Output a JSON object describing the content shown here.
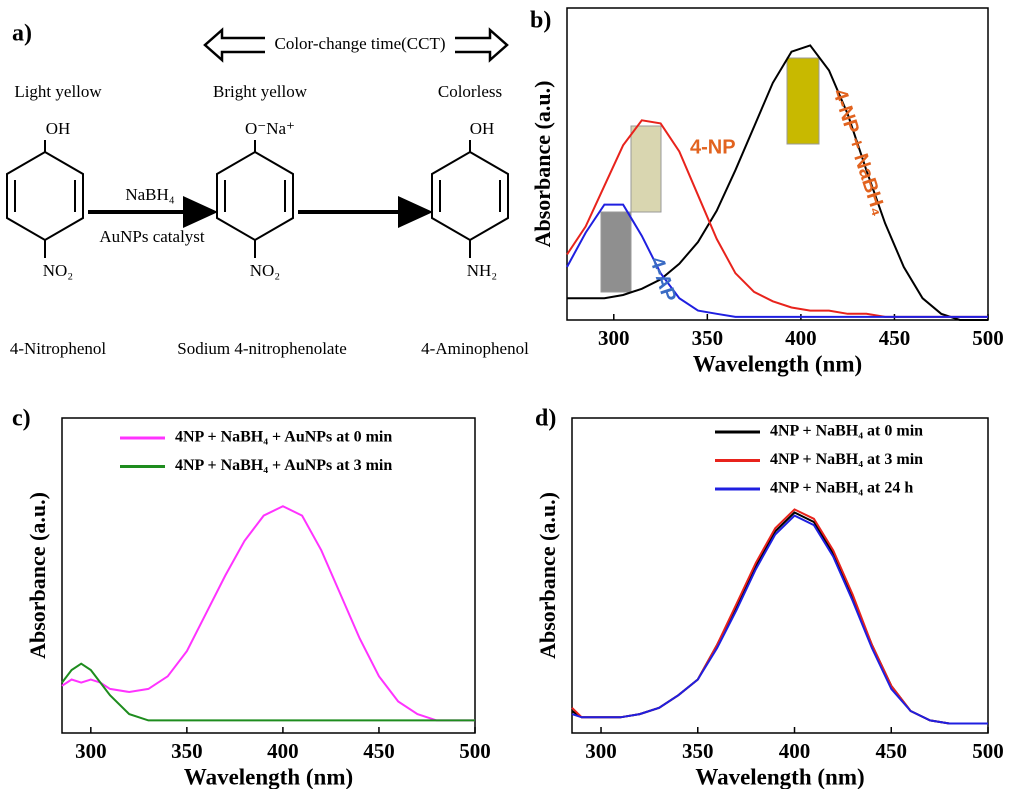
{
  "scheme": {
    "label": "a)",
    "cct": "Color-change time(CCT)",
    "colors": [
      "Light yellow",
      "Bright yellow",
      "Colorless"
    ],
    "top_groups": [
      "OH",
      "O⁻Na⁺",
      "OH"
    ],
    "bottom_groups": [
      "NO₂",
      "NO₂",
      "NH₂"
    ],
    "reagent": "NaBH₄",
    "catalyst": "AuNPs catalyst",
    "names": [
      "4-Nitrophenol",
      "Sodium 4-nitrophenolate",
      "4-Aminophenol"
    ]
  },
  "chart_data": [
    {
      "type": "line",
      "label": "b)",
      "xlabel": "Wavelength (nm)",
      "ylabel": "Absorbance (a.u.)",
      "x": [
        275,
        285,
        295,
        305,
        315,
        325,
        335,
        345,
        355,
        365,
        375,
        385,
        395,
        405,
        415,
        425,
        435,
        445,
        455,
        465,
        475,
        485,
        500
      ],
      "xlim": [
        275,
        500
      ],
      "xticks": [
        300,
        350,
        400,
        450,
        500
      ],
      "ylim": [
        0,
        1
      ],
      "series": [
        {
          "name": "4-NP + NaBH₄",
          "color": "#000000",
          "label_color": "#e2631f",
          "values": [
            0.07,
            0.07,
            0.07,
            0.08,
            0.1,
            0.13,
            0.18,
            0.25,
            0.35,
            0.48,
            0.62,
            0.76,
            0.86,
            0.88,
            0.8,
            0.66,
            0.48,
            0.31,
            0.17,
            0.07,
            0.02,
            0,
            0
          ]
        },
        {
          "name": "4-NP",
          "color": "#e8231c",
          "label_color": "#e2631f",
          "values": [
            0.21,
            0.3,
            0.43,
            0.56,
            0.64,
            0.63,
            0.54,
            0.4,
            0.26,
            0.15,
            0.09,
            0.06,
            0.04,
            0.03,
            0.03,
            0.02,
            0.02,
            0.01,
            0.01,
            0.01,
            0.01,
            0.01,
            0.01
          ]
        },
        {
          "name": "4-AP",
          "color": "#1f1fe0",
          "label_color": "#3a6bc4",
          "values": [
            0.17,
            0.28,
            0.37,
            0.37,
            0.27,
            0.15,
            0.07,
            0.03,
            0.02,
            0.01,
            0.01,
            0.01,
            0.01,
            0.01,
            0.01,
            0.01,
            0.01,
            0.01,
            0.01,
            0.01,
            0.01,
            0.01,
            0.01
          ]
        }
      ]
    },
    {
      "type": "line",
      "label": "c)",
      "xlabel": "Wavelength (nm)",
      "ylabel": "Absorbance (a.u.)",
      "x": [
        285,
        290,
        295,
        300,
        305,
        310,
        320,
        330,
        340,
        350,
        360,
        370,
        380,
        390,
        400,
        410,
        420,
        430,
        440,
        450,
        460,
        470,
        480,
        490,
        500
      ],
      "xlim": [
        285,
        500
      ],
      "xticks": [
        300,
        350,
        400,
        450,
        500
      ],
      "ylim": [
        0,
        1
      ],
      "legend": "upper right",
      "series": [
        {
          "name": "4NP + NaBH₄ + AuNPs at 0 min",
          "color": "#ff33ff",
          "values": [
            0.15,
            0.17,
            0.16,
            0.17,
            0.16,
            0.14,
            0.13,
            0.14,
            0.18,
            0.26,
            0.38,
            0.5,
            0.61,
            0.69,
            0.72,
            0.69,
            0.58,
            0.44,
            0.3,
            0.18,
            0.1,
            0.06,
            0.04,
            0.04,
            0.04
          ]
        },
        {
          "name": "4NP + NaBH₄ + AuNPs at 3 min",
          "color": "#1e8c1e",
          "values": [
            0.16,
            0.2,
            0.22,
            0.2,
            0.16,
            0.12,
            0.06,
            0.04,
            0.04,
            0.04,
            0.04,
            0.04,
            0.04,
            0.04,
            0.04,
            0.04,
            0.04,
            0.04,
            0.04,
            0.04,
            0.04,
            0.04,
            0.04,
            0.04,
            0.04
          ]
        }
      ]
    },
    {
      "type": "line",
      "label": "d)",
      "xlabel": "Wavelength (nm)",
      "ylabel": "Absorbance (a.u.)",
      "x": [
        285,
        290,
        300,
        310,
        320,
        330,
        340,
        350,
        360,
        370,
        380,
        390,
        400,
        410,
        420,
        430,
        440,
        450,
        460,
        470,
        480,
        490,
        500
      ],
      "xlim": [
        285,
        500
      ],
      "xticks": [
        300,
        350,
        400,
        450,
        500
      ],
      "ylim": [
        0,
        1
      ],
      "legend": "upper right",
      "series": [
        {
          "name": "4NP + NaBH₄ at 0 min",
          "color": "#000000",
          "values": [
            0.07,
            0.05,
            0.05,
            0.05,
            0.06,
            0.08,
            0.12,
            0.17,
            0.28,
            0.4,
            0.53,
            0.64,
            0.7,
            0.67,
            0.57,
            0.43,
            0.28,
            0.15,
            0.07,
            0.04,
            0.03,
            0.03,
            0.03
          ]
        },
        {
          "name": "4NP + NaBH₄ at 3 min",
          "color": "#e8231c",
          "values": [
            0.08,
            0.05,
            0.05,
            0.05,
            0.06,
            0.08,
            0.12,
            0.17,
            0.28,
            0.41,
            0.54,
            0.65,
            0.71,
            0.68,
            0.58,
            0.44,
            0.28,
            0.15,
            0.07,
            0.04,
            0.03,
            0.03,
            0.03
          ]
        },
        {
          "name": "4NP + NaBH₄ at 24 h",
          "color": "#1f1fe0",
          "values": [
            0.06,
            0.05,
            0.05,
            0.05,
            0.06,
            0.08,
            0.12,
            0.17,
            0.27,
            0.39,
            0.52,
            0.63,
            0.69,
            0.66,
            0.56,
            0.42,
            0.27,
            0.14,
            0.07,
            0.04,
            0.03,
            0.03,
            0.03
          ]
        }
      ]
    }
  ]
}
